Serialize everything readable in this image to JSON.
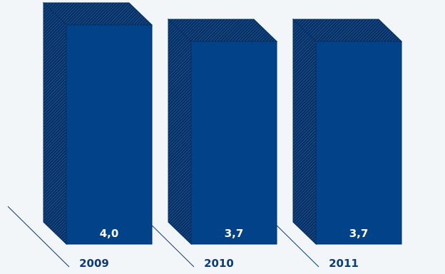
{
  "chart_data": {
    "type": "bar",
    "categories": [
      "2009",
      "2010",
      "2011"
    ],
    "values": [
      4.0,
      3.7,
      3.7
    ],
    "value_labels": [
      "4,0",
      "3,7",
      "3,7"
    ],
    "title": "",
    "xlabel": "",
    "ylabel": "",
    "ylim": [
      0,
      4.0
    ],
    "grid": false,
    "legend": "none",
    "style": "3d-box"
  },
  "colors": {
    "background": "#f2f6f9",
    "bar_front": "#024288",
    "bar_side": "#012f66",
    "hatch_line": "#4f74a6",
    "value_label": "#ffffff",
    "year_label": "#0b3b78",
    "floor_line": "#0b3b78"
  }
}
